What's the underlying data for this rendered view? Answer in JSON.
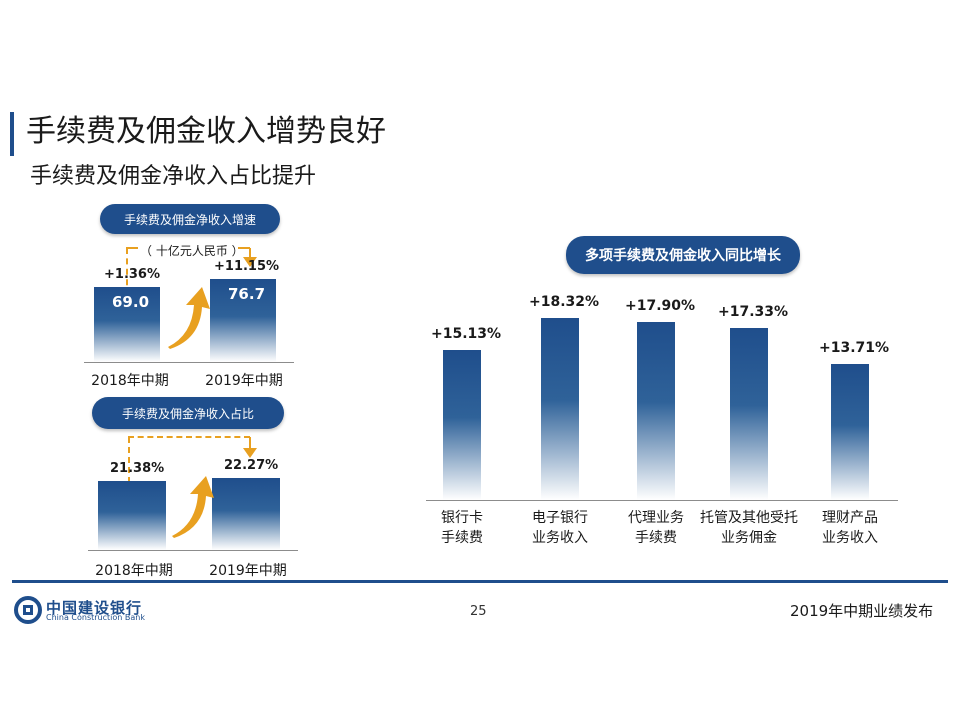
{
  "title": "手续费及佣金收入增势良好",
  "subtitle": "手续费及佣金净收入占比提升",
  "chart_data": [
    {
      "type": "bar",
      "title": "手续费及佣金净收入增速",
      "unit": "（ 十亿元人民币 ）",
      "categories": [
        "2018年中期",
        "2019年中期"
      ],
      "values": [
        69.0,
        76.7
      ],
      "value_labels": [
        "69.0",
        "76.7"
      ],
      "growth_labels": [
        "+1.36%",
        "+11.15%"
      ],
      "ylim": [
        0,
        90
      ]
    },
    {
      "type": "bar",
      "title": "手续费及佣金净收入占比",
      "categories": [
        "2018年中期",
        "2019年中期"
      ],
      "values": [
        21.38,
        22.27
      ],
      "value_labels": [
        "21.38%",
        "22.27%"
      ],
      "ylim": [
        0,
        25
      ]
    },
    {
      "type": "bar",
      "title": "多项手续费及佣金收入同比增长",
      "categories": [
        "银行卡\n手续费",
        "电子银行\n业务收入",
        "代理业务\n手续费",
        "托管及其他受托\n业务佣金",
        "理财产品\n业务收入"
      ],
      "category_lines": [
        [
          "银行卡",
          "手续费"
        ],
        [
          "电子银行",
          "业务收入"
        ],
        [
          "代理业务",
          "手续费"
        ],
        [
          "托管及其他受托",
          "业务佣金"
        ],
        [
          "理财产品",
          "业务收入"
        ]
      ],
      "values": [
        15.13,
        18.32,
        17.9,
        17.33,
        13.71
      ],
      "value_labels": [
        "+15.13%",
        "+18.32%",
        "+17.90%",
        "+17.33%",
        "+13.71%"
      ],
      "ylim": [
        0,
        20
      ]
    }
  ],
  "footer": {
    "page": "25",
    "right": "2019年中期业绩发布",
    "logo_cn": "中国建设银行",
    "logo_en": "China Construction Bank"
  },
  "colors": {
    "accent": "#1f4e8c",
    "arrow": "#e8a020"
  }
}
